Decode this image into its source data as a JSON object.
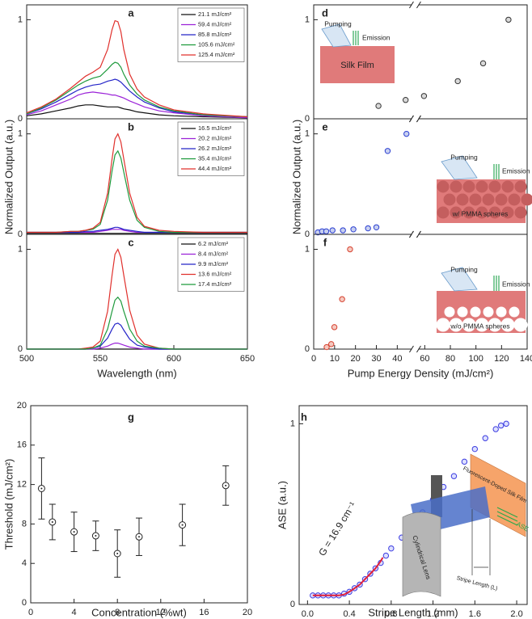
{
  "chart_data": [
    {
      "type": "line",
      "label": "a",
      "xlim": [
        500,
        650
      ],
      "ylim": [
        0,
        1.15
      ],
      "yticks": [
        0,
        1
      ],
      "x": [
        500,
        510,
        520,
        530,
        535,
        540,
        545,
        550,
        555,
        558,
        560,
        562,
        564,
        566,
        570,
        575,
        580,
        590,
        600,
        620,
        650
      ],
      "series": [
        {
          "name": "21.1 mJ/cm²",
          "color": "#111111",
          "values": [
            0.03,
            0.05,
            0.08,
            0.11,
            0.13,
            0.14,
            0.14,
            0.13,
            0.12,
            0.12,
            0.12,
            0.12,
            0.11,
            0.1,
            0.09,
            0.07,
            0.06,
            0.04,
            0.03,
            0.02,
            0.01
          ]
        },
        {
          "name": "59.4 mJ/cm²",
          "color": "#9b22d8",
          "values": [
            0.04,
            0.08,
            0.14,
            0.2,
            0.24,
            0.26,
            0.27,
            0.26,
            0.25,
            0.24,
            0.24,
            0.23,
            0.22,
            0.21,
            0.18,
            0.15,
            0.12,
            0.08,
            0.06,
            0.03,
            0.01
          ]
        },
        {
          "name": "85.8 mJ/cm²",
          "color": "#2424c8",
          "values": [
            0.05,
            0.1,
            0.17,
            0.25,
            0.29,
            0.32,
            0.34,
            0.35,
            0.38,
            0.39,
            0.4,
            0.39,
            0.37,
            0.34,
            0.28,
            0.22,
            0.17,
            0.11,
            0.07,
            0.04,
            0.02
          ]
        },
        {
          "name": "105.6 mJ/cm²",
          "color": "#1e9a3c",
          "values": [
            0.05,
            0.11,
            0.19,
            0.29,
            0.34,
            0.38,
            0.41,
            0.43,
            0.5,
            0.55,
            0.57,
            0.56,
            0.52,
            0.45,
            0.34,
            0.25,
            0.19,
            0.12,
            0.08,
            0.04,
            0.02
          ]
        },
        {
          "name": "125.4 mJ/cm²",
          "color": "#e0302c",
          "values": [
            0.06,
            0.12,
            0.2,
            0.31,
            0.37,
            0.43,
            0.47,
            0.52,
            0.7,
            0.9,
            0.99,
            0.98,
            0.88,
            0.7,
            0.45,
            0.3,
            0.22,
            0.14,
            0.09,
            0.05,
            0.02
          ]
        }
      ]
    },
    {
      "type": "line",
      "label": "b",
      "ylabel": "Normalized Output (a.u.)",
      "xlim": [
        500,
        650
      ],
      "ylim": [
        0,
        1.15
      ],
      "yticks": [
        0,
        1
      ],
      "x": [
        500,
        510,
        520,
        530,
        535,
        540,
        545,
        550,
        555,
        558,
        560,
        562,
        564,
        566,
        570,
        575,
        580,
        590,
        600,
        620,
        650
      ],
      "series": [
        {
          "name": "16.5 mJ/cm²",
          "color": "#111111",
          "values": [
            0.01,
            0.01,
            0.01,
            0.01,
            0.01,
            0.01,
            0.01,
            0.01,
            0.01,
            0.01,
            0.01,
            0.01,
            0.01,
            0.01,
            0.01,
            0.01,
            0.01,
            0.01,
            0.01,
            0.01,
            0.01
          ]
        },
        {
          "name": "20.2 mJ/cm²",
          "color": "#9b22d8",
          "values": [
            0.02,
            0.02,
            0.02,
            0.02,
            0.02,
            0.02,
            0.02,
            0.03,
            0.04,
            0.05,
            0.05,
            0.05,
            0.05,
            0.04,
            0.03,
            0.02,
            0.02,
            0.02,
            0.02,
            0.02,
            0.02
          ]
        },
        {
          "name": "26.2 mJ/cm²",
          "color": "#2424c8",
          "values": [
            0.02,
            0.02,
            0.02,
            0.02,
            0.02,
            0.03,
            0.03,
            0.04,
            0.05,
            0.06,
            0.07,
            0.07,
            0.06,
            0.05,
            0.04,
            0.03,
            0.02,
            0.02,
            0.02,
            0.02,
            0.02
          ]
        },
        {
          "name": "35.4 mJ/cm²",
          "color": "#1e9a3c",
          "values": [
            0.02,
            0.02,
            0.02,
            0.03,
            0.03,
            0.04,
            0.05,
            0.1,
            0.34,
            0.63,
            0.79,
            0.83,
            0.76,
            0.62,
            0.34,
            0.14,
            0.07,
            0.03,
            0.02,
            0.02,
            0.02
          ]
        },
        {
          "name": "44.4 mJ/cm²",
          "color": "#e0302c",
          "values": [
            0.02,
            0.02,
            0.02,
            0.03,
            0.03,
            0.04,
            0.06,
            0.12,
            0.41,
            0.75,
            0.95,
            1.0,
            0.92,
            0.75,
            0.41,
            0.17,
            0.08,
            0.04,
            0.03,
            0.02,
            0.02
          ]
        }
      ]
    },
    {
      "type": "line",
      "label": "c",
      "xlabel": "Wavelength (nm)",
      "xlim": [
        500,
        650
      ],
      "ylim": [
        0,
        1.15
      ],
      "yticks": [
        0,
        1
      ],
      "xticks": [
        500,
        550,
        600,
        650
      ],
      "x": [
        500,
        510,
        520,
        530,
        535,
        540,
        545,
        550,
        555,
        558,
        560,
        562,
        564,
        566,
        570,
        575,
        580,
        590,
        600,
        620,
        650
      ],
      "series": [
        {
          "name": "6.2 mJ/cm²",
          "color": "#111111",
          "values": [
            0,
            0,
            0,
            0,
            0,
            0,
            0,
            0,
            0,
            0,
            0,
            0,
            0,
            0,
            0,
            0,
            0,
            0,
            0,
            0,
            0
          ]
        },
        {
          "name": "8.4 mJ/cm²",
          "color": "#9b22d8",
          "values": [
            0,
            0,
            0,
            0,
            0,
            0,
            0,
            0.01,
            0.03,
            0.05,
            0.06,
            0.06,
            0.05,
            0.04,
            0.02,
            0.01,
            0,
            0,
            0,
            0,
            0
          ]
        },
        {
          "name": "9.9 mJ/cm²",
          "color": "#2424c8",
          "values": [
            0,
            0,
            0,
            0,
            0,
            0,
            0.01,
            0.03,
            0.11,
            0.2,
            0.25,
            0.26,
            0.24,
            0.19,
            0.1,
            0.04,
            0.02,
            0,
            0,
            0,
            0
          ]
        },
        {
          "name": "13.6 mJ/cm²",
          "color": "#e0302c",
          "values": [
            0,
            0,
            0,
            0,
            0,
            0.01,
            0.02,
            0.08,
            0.38,
            0.74,
            0.95,
            1.0,
            0.92,
            0.74,
            0.39,
            0.14,
            0.05,
            0.01,
            0,
            0,
            0
          ]
        },
        {
          "name": "17.4 mJ/cm²",
          "color": "#1e9a3c",
          "values": [
            0,
            0,
            0,
            0,
            0,
            0,
            0.01,
            0.04,
            0.2,
            0.38,
            0.49,
            0.52,
            0.48,
            0.38,
            0.2,
            0.08,
            0.03,
            0.01,
            0,
            0,
            0
          ]
        }
      ]
    },
    {
      "type": "scatter",
      "label": "d",
      "xlim": [
        0,
        140
      ],
      "xbreak": [
        47,
        55
      ],
      "ylim": [
        0,
        1.15
      ],
      "yticks": [
        0,
        1
      ],
      "inset": {
        "pumping": "Pumping",
        "emission": "Emission",
        "sample": "Silk Film"
      },
      "series": [
        {
          "color": "#333333",
          "fill": "#d9d9d9",
          "x": [
            31,
            44,
            59.4,
            85.8,
            105.6,
            125.4
          ],
          "values": [
            0.13,
            0.19,
            0.23,
            0.38,
            0.56,
            1.0
          ]
        }
      ]
    },
    {
      "type": "scatter",
      "label": "e",
      "ylabel": "Normalized Output (a.u.)",
      "xlim": [
        0,
        140
      ],
      "xbreak": [
        47,
        55
      ],
      "ylim": [
        0,
        1.15
      ],
      "yticks": [
        0,
        1
      ],
      "inset": {
        "pumping": "Pumping",
        "emission": "Emission",
        "sample": "w/ PMMA spheres"
      },
      "series": [
        {
          "color": "#2b3fd1",
          "fill": "#c8d0f0",
          "x": [
            2,
            4,
            6,
            9,
            14,
            19,
            26,
            30,
            35.4,
            44.4
          ],
          "values": [
            0.02,
            0.03,
            0.03,
            0.04,
            0.04,
            0.05,
            0.06,
            0.07,
            0.83,
            1.0
          ]
        }
      ]
    },
    {
      "type": "scatter",
      "label": "f",
      "xlabel": "Pump Energy Density (mJ/cm²)",
      "xlim": [
        0,
        140
      ],
      "xbreak": [
        47,
        55
      ],
      "ylim": [
        0,
        1.15
      ],
      "yticks": [
        0,
        1
      ],
      "xticks": [
        0,
        10,
        20,
        30,
        40,
        60,
        80,
        100,
        120,
        140
      ],
      "inset": {
        "pumping": "Pumping",
        "emission": "Emission",
        "sample": "w/o PMMA spheres"
      },
      "series": [
        {
          "color": "#d6412f",
          "fill": "#f5c9c0",
          "x": [
            6.2,
            8.4,
            9.9,
            13.6,
            17.4
          ],
          "values": [
            0.02,
            0.05,
            0.22,
            0.5,
            1.0
          ]
        }
      ]
    },
    {
      "type": "scatter",
      "label": "g",
      "xlabel": "Concentration (%wt)",
      "ylabel": "Threshold (mJ/cm²)",
      "xlim": [
        0,
        20
      ],
      "ylim": [
        0,
        20
      ],
      "xticks": [
        0,
        4,
        8,
        12,
        16,
        20
      ],
      "yticks": [
        0,
        4,
        8,
        12,
        16,
        20
      ],
      "series": [
        {
          "color": "#222222",
          "fill": "none",
          "x": [
            1,
            2,
            4,
            6,
            8,
            10,
            14,
            18
          ],
          "values": [
            11.6,
            8.2,
            7.2,
            6.8,
            5.0,
            6.7,
            7.9,
            11.9
          ],
          "errors": [
            3.1,
            1.8,
            2.0,
            1.5,
            2.4,
            1.9,
            2.1,
            2.0
          ]
        }
      ]
    },
    {
      "type": "scatter",
      "label": "h",
      "xlabel": "Stripe Length (mm)",
      "ylabel": "ASE (a.u.)",
      "annotation": "G = 16.9 cm⁻¹",
      "xlim": [
        -0.08,
        2.1
      ],
      "ylim": [
        0,
        1.1
      ],
      "xticks": [
        {
          "value": 0,
          "label": "0.0"
        },
        0.4,
        0.8,
        1.2,
        1.6,
        {
          "value": 2,
          "label": "2.0"
        }
      ],
      "yticks": [
        0,
        1
      ],
      "inset": {
        "film": "Fluorescent-Doped Silk Film",
        "lens": "Cylindrical Lens",
        "output": "ASE",
        "stripe": "Stripe Length (L)"
      },
      "series": [
        {
          "color": "#3b3be0",
          "fill": "#dde0ff",
          "x": [
            0.05,
            0.1,
            0.15,
            0.2,
            0.25,
            0.3,
            0.35,
            0.4,
            0.45,
            0.5,
            0.55,
            0.6,
            0.65,
            0.7,
            0.75,
            0.8,
            0.9,
            1.0,
            1.1,
            1.2,
            1.3,
            1.4,
            1.5,
            1.6,
            1.7,
            1.8,
            1.85,
            1.9
          ],
          "values": [
            0.05,
            0.05,
            0.05,
            0.05,
            0.05,
            0.05,
            0.06,
            0.07,
            0.09,
            0.11,
            0.14,
            0.17,
            0.2,
            0.23,
            0.27,
            0.31,
            0.37,
            0.44,
            0.51,
            0.58,
            0.65,
            0.71,
            0.79,
            0.86,
            0.92,
            0.97,
            0.99,
            1.0
          ]
        }
      ],
      "fit": {
        "color": "#e0203a",
        "x": [
          0.05,
          0.3,
          0.35,
          0.4,
          0.45,
          0.5,
          0.55,
          0.6,
          0.65,
          0.7,
          0.72
        ],
        "values": [
          0.05,
          0.05,
          0.055,
          0.07,
          0.09,
          0.11,
          0.14,
          0.17,
          0.2,
          0.24,
          0.26
        ]
      }
    }
  ]
}
